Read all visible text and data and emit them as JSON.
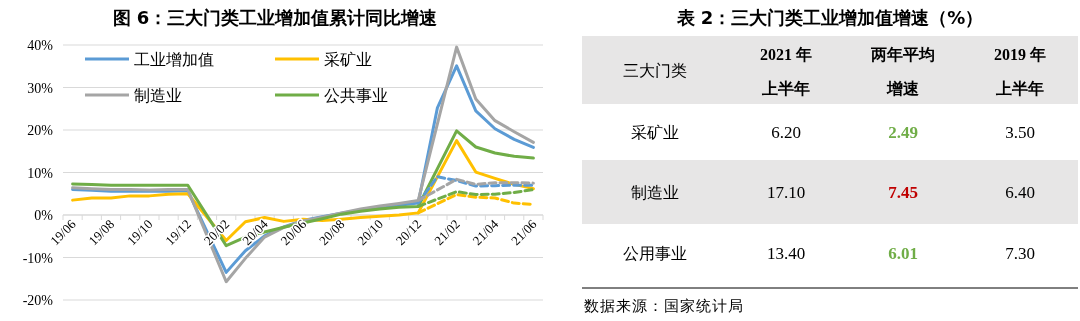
{
  "chart_data": [
    {
      "type": "line",
      "title": "图 6：三大门类工业增加值累计同比增速",
      "categories": [
        "19/06",
        null,
        "19/08",
        null,
        "19/10",
        null,
        "19/12",
        null,
        "20/02",
        null,
        "20/04",
        null,
        "20/06",
        null,
        "20/08",
        null,
        "20/10",
        null,
        "20/12",
        null,
        "21/02",
        null,
        "21/04",
        null,
        "21/06"
      ],
      "series": [
        {
          "name": "工业增加值",
          "color": "#5b9bd5",
          "values": [
            6.0,
            5.8,
            5.6,
            5.6,
            5.6,
            5.6,
            5.7,
            null,
            -13.5,
            -8.4,
            -4.9,
            -2.8,
            -1.3,
            -0.4,
            0.4,
            1.2,
            1.8,
            2.3,
            2.8,
            25.2,
            35.1,
            24.5,
            20.3,
            17.8,
            15.9
          ]
        },
        {
          "name": "采矿业",
          "color": "#ffc000",
          "values": [
            3.5,
            4.0,
            4.0,
            4.5,
            4.5,
            4.9,
            5.0,
            null,
            -6.0,
            -1.6,
            -0.6,
            -1.5,
            -1.0,
            -1.3,
            -1.0,
            -0.6,
            -0.3,
            0.0,
            0.5,
            null,
            17.5,
            10.1,
            8.6,
            7.2,
            6.2
          ]
        },
        {
          "name": "制造业",
          "color": "#a5a5a5",
          "values": [
            6.4,
            6.2,
            6.0,
            6.0,
            5.9,
            6.0,
            6.0,
            null,
            -15.7,
            -10.2,
            -5.2,
            -2.9,
            -1.4,
            -0.5,
            0.5,
            1.4,
            2.1,
            2.7,
            3.4,
            null,
            39.5,
            27.3,
            22.2,
            19.6,
            17.1
          ]
        },
        {
          "name": "公共事业",
          "color": "#70ad47",
          "values": [
            7.3,
            7.2,
            7.0,
            7.0,
            7.0,
            7.0,
            7.0,
            null,
            -7.2,
            -5.2,
            -4.0,
            -2.9,
            -1.9,
            -0.9,
            0.2,
            0.9,
            1.4,
            1.8,
            2.0,
            null,
            19.8,
            16.0,
            14.6,
            13.8,
            13.4
          ]
        },
        {
          "color": "#5b9bd5",
          "line_style": "dashed",
          "values": [
            null,
            null,
            null,
            null,
            null,
            null,
            null,
            null,
            null,
            null,
            null,
            null,
            null,
            null,
            null,
            null,
            null,
            null,
            2.8,
            9.0,
            8.1,
            6.8,
            6.9,
            7.0,
            7.0
          ]
        },
        {
          "color": "#ffc000",
          "line_style": "dashed",
          "values": [
            null,
            null,
            null,
            null,
            null,
            null,
            null,
            null,
            null,
            null,
            null,
            null,
            null,
            null,
            null,
            null,
            null,
            null,
            0.5,
            null,
            4.8,
            4.2,
            4.0,
            2.8,
            2.5
          ]
        },
        {
          "color": "#a5a5a5",
          "line_style": "dashed",
          "values": [
            null,
            null,
            null,
            null,
            null,
            null,
            null,
            null,
            null,
            null,
            null,
            null,
            null,
            null,
            null,
            null,
            null,
            null,
            3.4,
            null,
            8.4,
            7.2,
            7.6,
            7.6,
            7.5
          ]
        },
        {
          "color": "#70ad47",
          "line_style": "dashed",
          "values": [
            null,
            null,
            null,
            null,
            null,
            null,
            null,
            null,
            null,
            null,
            null,
            null,
            null,
            null,
            null,
            null,
            null,
            null,
            2.0,
            null,
            5.5,
            4.8,
            4.9,
            5.3,
            6.0
          ]
        }
      ],
      "ylim": [
        -20,
        40
      ],
      "yticks": [
        {
          "value": -20,
          "label": "-20%"
        },
        {
          "value": -10,
          "label": "-10%"
        },
        {
          "value": 0,
          "label": "0%"
        },
        {
          "value": 10,
          "label": "10%"
        },
        {
          "value": 20,
          "label": "20%"
        },
        {
          "value": 30,
          "label": "30%"
        },
        {
          "value": 40,
          "label": "40%"
        }
      ],
      "grid": "y",
      "legend": "top",
      "line_style": "solid",
      "marker": "none"
    },
    {
      "type": "other",
      "title": "表 2：三大门类工业增加值增速（%）",
      "ylabel": "三大门类",
      "categories": [
        "2021 年上半年",
        "两年平均增速",
        "2019 年上半年"
      ],
      "y_categories": [
        "采矿业",
        "制造业",
        "公用事业"
      ],
      "cell_labels": [
        [
          "6.20",
          "2.49",
          "3.50"
        ],
        [
          "17.10",
          "7.45",
          "6.40"
        ],
        [
          "13.40",
          "6.01",
          "7.30"
        ]
      ],
      "colors": [
        [
          "#000000",
          "#70ad47",
          "#000000"
        ],
        [
          "#000000",
          "#c00000",
          "#000000"
        ],
        [
          "#000000",
          "#70ad47",
          "#000000"
        ]
      ],
      "annotations": [
        "数据来源：国家统计局"
      ]
    }
  ]
}
